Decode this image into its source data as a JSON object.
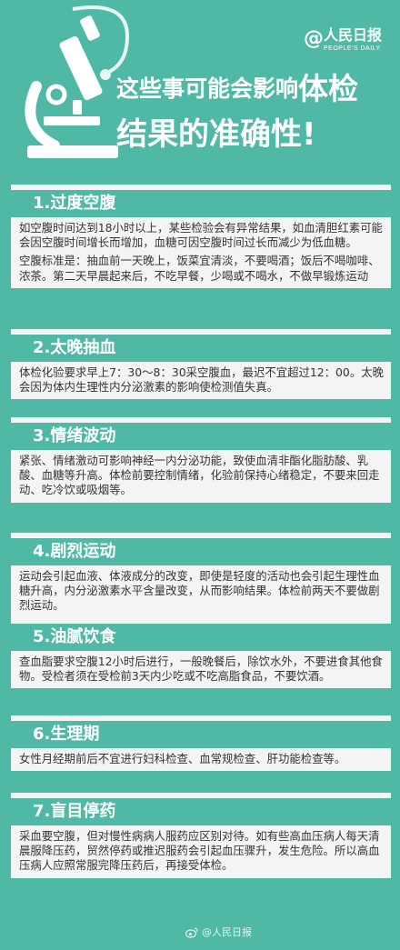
{
  "brand": {
    "at_symbol": "@",
    "name": "人民日报",
    "sub": "PEOPLE'S DAILY"
  },
  "title": {
    "line1_a": "这些事可能会影响",
    "line1_b": "体检",
    "line2": "结果的准确性!"
  },
  "sections": [
    {
      "heading": "1.过度空腹",
      "paragraphs": [
        "如空腹时间达到18小时以上，某些检验会有异常结果，如血清胆红素可能会因空腹时间增长而增加，血糖可因空腹时间过长而减少为低血糖。",
        "空腹标准是：抽血前一天晚上，饭菜宜清淡，不要喝酒；饭后不喝咖啡、浓茶。第二天早晨起来后，不吃早餐，少喝或不喝水，不做早锻炼运动"
      ]
    },
    {
      "heading": "2.太晚抽血",
      "paragraphs": [
        "体检化验要求早上7：30～8：30采空腹血，最迟不宜超过12：00。太晚会因为体内生理性内分泌激素的影响使检测值失真。"
      ]
    },
    {
      "heading": "3.情绪波动",
      "paragraphs": [
        "紧张、情绪激动可影响神经一内分泌功能，致使血清非酯化脂肪酸、乳酸、血糖等升高。体检前要控制情绪，化验前保持心绪稳定，不要来回走动、吃冷饮或吸烟等。"
      ]
    },
    {
      "heading": "4.剧烈运动",
      "paragraphs": [
        "运动会引起血液、体液成分的改变，即使是轻度的活动也会引起生理性血糖升高，内分泌激素水平含量改变，从而影响结果。体检前两天不要做剧烈运动。"
      ]
    },
    {
      "heading": "5.油腻饮食",
      "paragraphs": [
        "查血脂要求空腹12小时后进行，一般晚餐后，除饮水外，不要进食其他食物。受检者须在受检前3天内少吃或不吃高脂食品，不要饮酒。"
      ]
    },
    {
      "heading": "6.生理期",
      "paragraphs": [
        "女性月经期前后不宜进行妇科检查、血常规检查、肝功能检查等。"
      ]
    },
    {
      "heading": "7.盲目停药",
      "paragraphs": [
        "采血要空腹，但对慢性病病人服药应区别对待。如有些高血压病人每天清晨服降压药，贸然停药或推迟服药会引起血压骤升，发生危险。所以高血压病人应照常服完降压药后，再接受体检。"
      ]
    }
  ],
  "footer": {
    "text": "@人民日报",
    "icon": "weibo-icon"
  },
  "colors": {
    "background": "#4fb9a6",
    "card": "#f4f4f4",
    "text": "#333333",
    "heading_text": "#ffffff"
  }
}
